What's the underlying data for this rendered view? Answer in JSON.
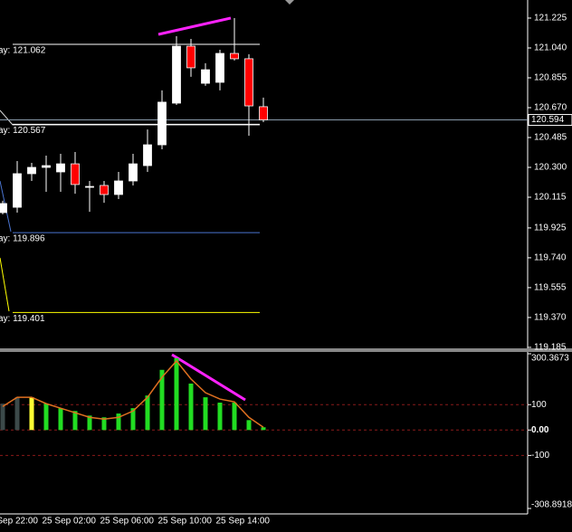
{
  "chart_data": [
    {
      "type": "candlestick",
      "categories": [
        null,
        "Sep 22:00",
        null,
        null,
        null,
        "25 Sep 02:00",
        null,
        null,
        null,
        "25 Sep 06:00",
        null,
        null,
        null,
        "25 Sep 10:00",
        null,
        null,
        null,
        "25 Sep 14:00",
        null
      ],
      "open": [
        120.02,
        120.053,
        120.261,
        120.3,
        120.272,
        120.322,
        120.182,
        120.188,
        120.132,
        120.216,
        120.311,
        120.44,
        120.698,
        121.051,
        120.821,
        120.827,
        121.006,
        120.973,
        120.676
      ],
      "high": [
        120.093,
        120.339,
        120.328,
        120.373,
        120.384,
        120.395,
        120.216,
        120.216,
        120.272,
        120.384,
        120.535,
        120.777,
        121.113,
        121.096,
        120.945,
        121.029,
        121.225,
        121.001,
        120.732
      ],
      "low": [
        120.009,
        120.02,
        120.216,
        120.149,
        120.149,
        120.137,
        120.025,
        120.081,
        120.104,
        120.188,
        120.272,
        120.412,
        120.687,
        120.861,
        120.805,
        120.777,
        120.962,
        120.496,
        120.58
      ],
      "close": [
        120.076,
        120.261,
        120.3,
        120.311,
        120.322,
        120.194,
        120.182,
        120.132,
        120.216,
        120.322,
        120.44,
        120.704,
        121.051,
        120.917,
        120.905,
        121.006,
        120.973,
        120.681,
        120.594
      ],
      "up_color": "#ffffff",
      "down_color": "#ff0000",
      "wick_color": "#ffffff",
      "ylim": [
        119.179,
        121.337
      ],
      "yticks": [
        121.225,
        {
          "value": 121.04,
          "label": "121.040"
        },
        120.855,
        {
          "value": 120.67,
          "label": "120.670"
        },
        120.485,
        {
          "value": 120.3,
          "label": "120.300"
        },
        120.115,
        119.925,
        {
          "value": 119.74,
          "label": "119.740"
        },
        119.555,
        {
          "value": 119.37,
          "label": "119.370"
        },
        119.185
      ],
      "current_price": 120.594,
      "levels": [
        {
          "label": "ay: 121.062",
          "value": 121.062,
          "color": "#ffffff"
        },
        {
          "label": "ay: 120.567",
          "value": 120.567,
          "color": "#ffffff"
        },
        {
          "label": "ay: 119.896",
          "value": 119.896,
          "color": "#4a74d0"
        },
        {
          "label": "ay: 119.401",
          "value": 119.401,
          "color": "#ffff00"
        }
      ]
    },
    {
      "type": "bar",
      "series": [
        {
          "values": [
            104,
            129,
            129,
            104,
            86,
            75,
            57,
            50,
            65,
            86,
            136,
            237,
            283,
            183,
            129,
            108,
            108,
            39,
            11
          ],
          "colors": [
            "#3c4a4a",
            "#3c4a4a",
            "#ffff33",
            "#22dd22",
            "#22dd22",
            "#22dd22",
            "#22dd22",
            "#22dd22",
            "#22dd22",
            "#22dd22",
            "#22dd22",
            "#22dd22",
            "#22dd22",
            "#22dd22",
            "#22dd22",
            "#22dd22",
            "#22dd22",
            "#22dd22",
            "#22dd22"
          ]
        },
        {
          "type": "line",
          "color": "#e07020",
          "values": [
            93,
            129,
            129,
            104,
            86,
            68,
            50,
            43,
            50,
            75,
            129,
            208,
            272,
            201,
            147,
            122,
            111,
            50,
            11
          ]
        }
      ],
      "ylim": [
        -308.8918,
        300.3673
      ],
      "yticks": [
        300.3673,
        100,
        {
          "value": 0,
          "label": "0.00"
        },
        -100,
        -308.8918
      ],
      "level_color": "#8b1a1a"
    }
  ]
}
